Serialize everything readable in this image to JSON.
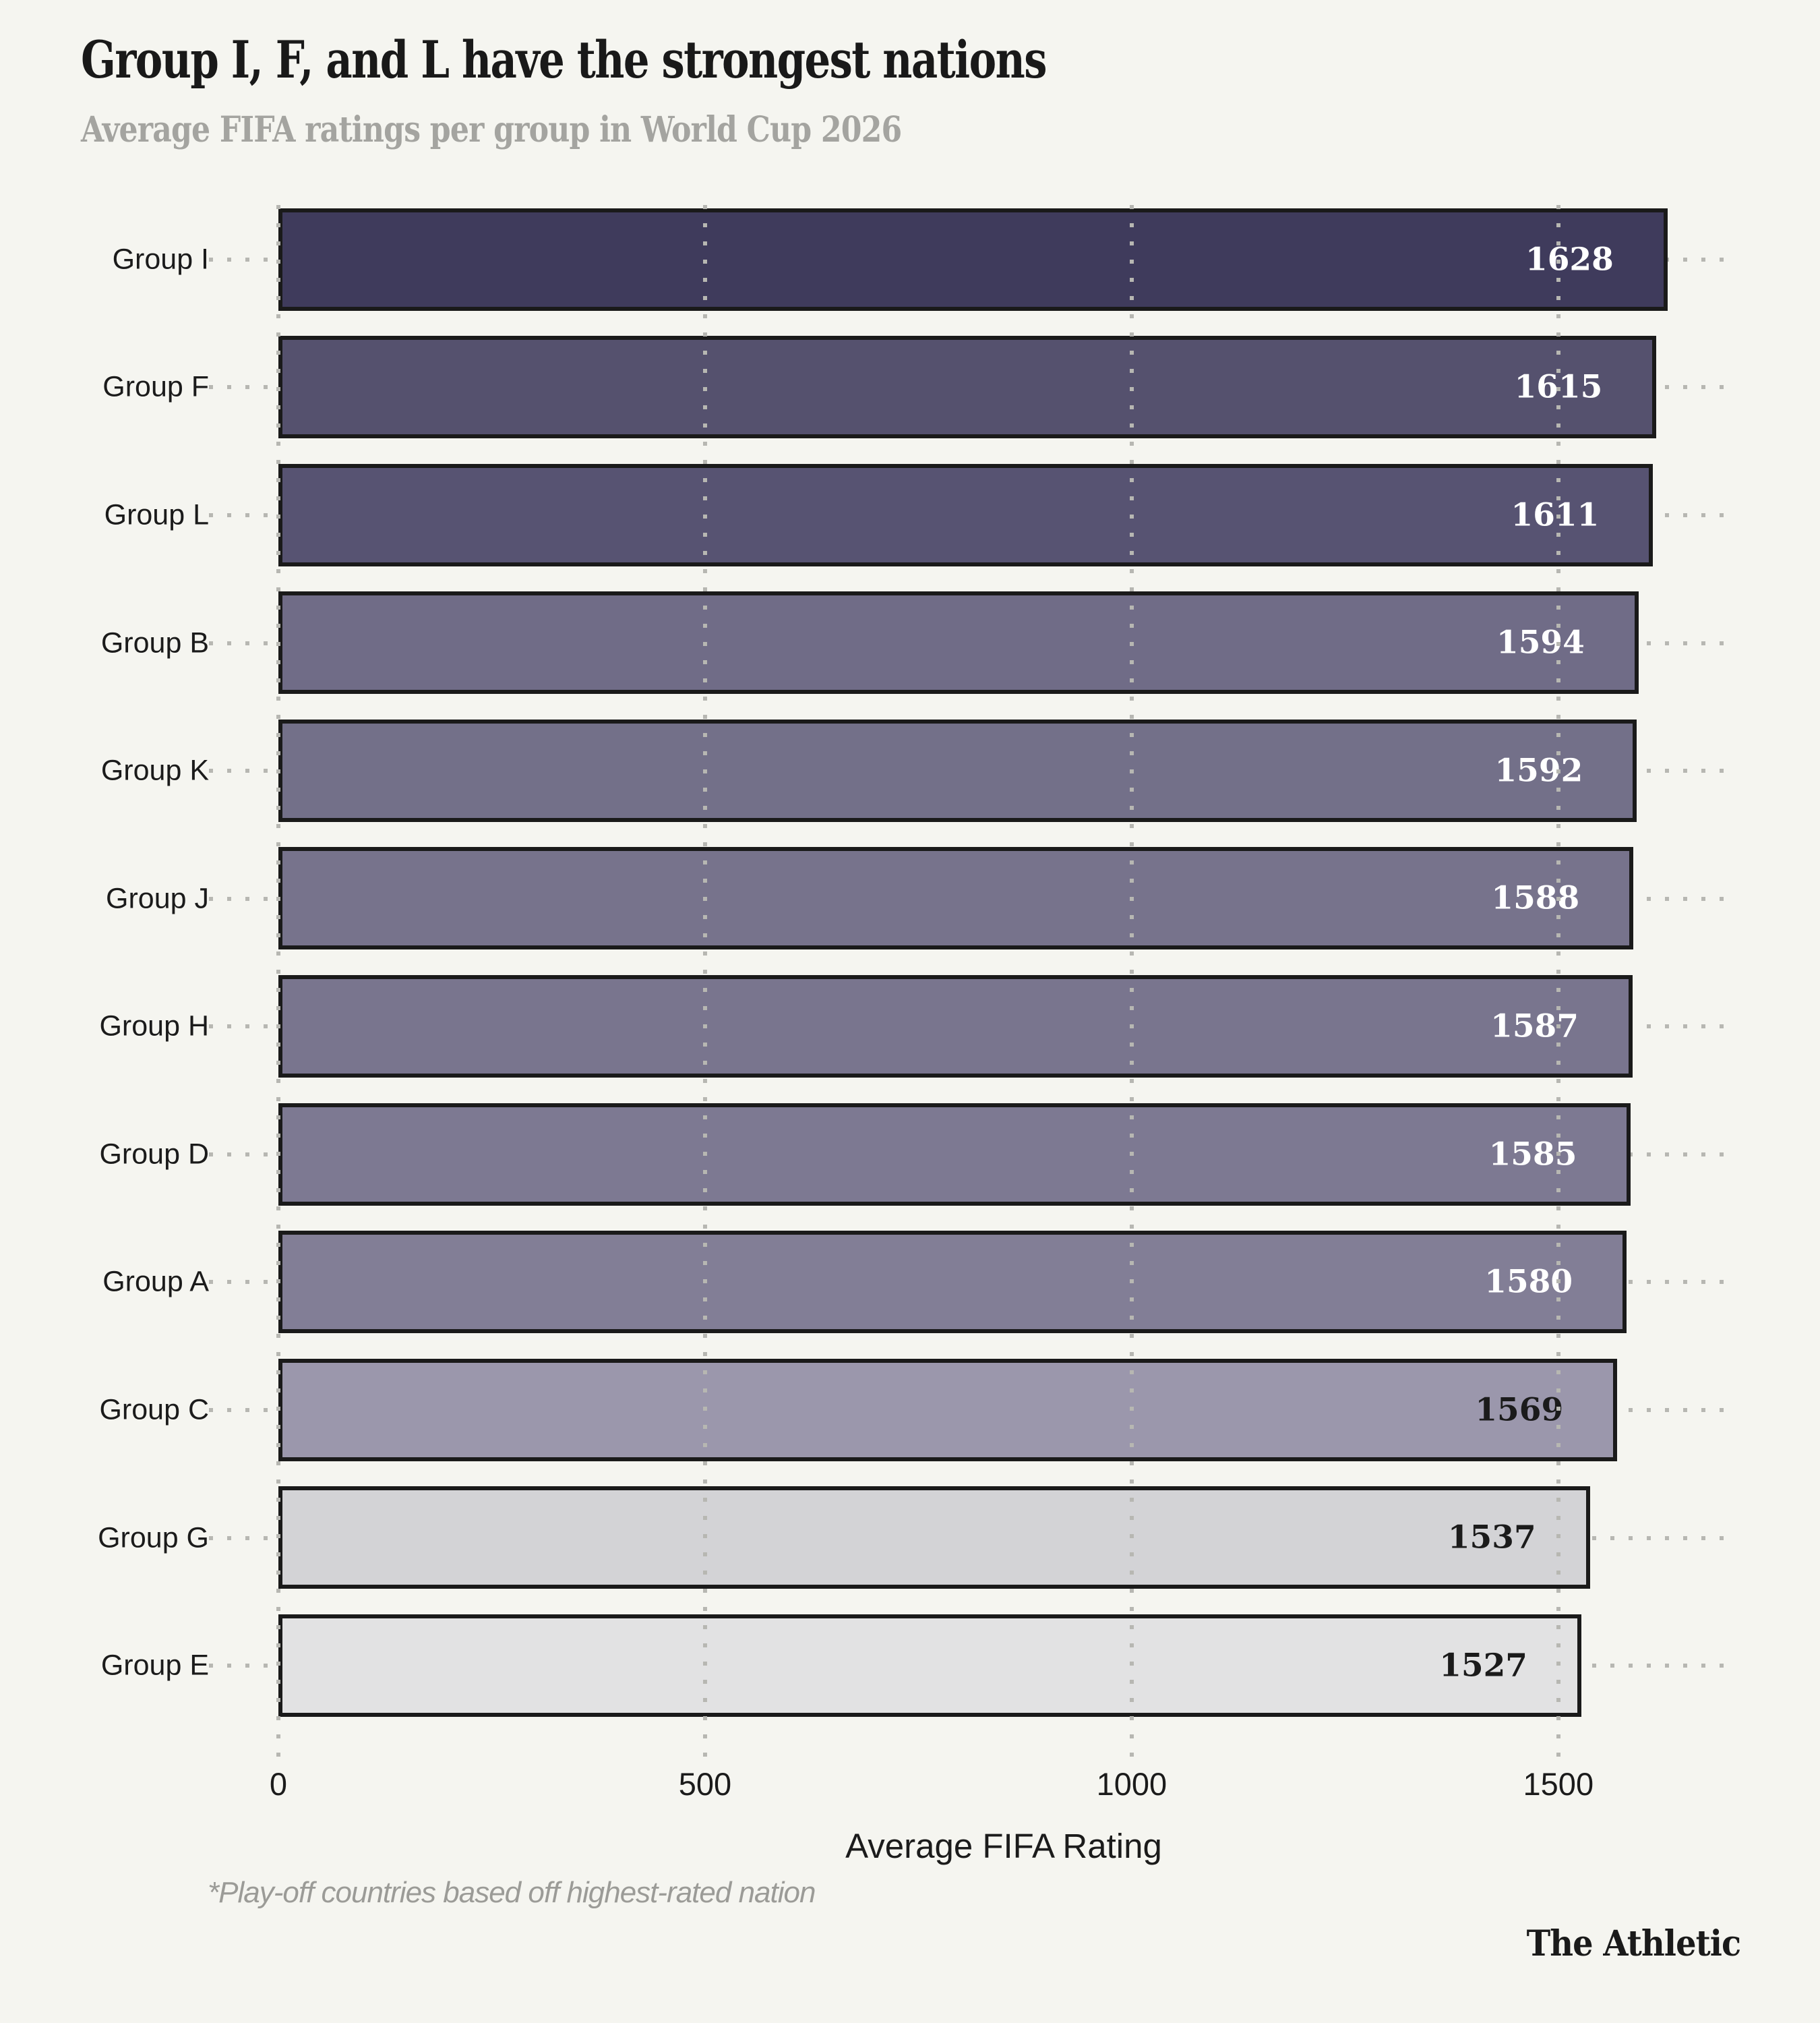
{
  "header": {
    "title": "Group I, F, and L have the strongest nations",
    "subtitle": "Average FIFA ratings per group in World Cup 2026"
  },
  "footer": {
    "footnote": "*Play-off countries based off highest-rated nation",
    "attribution": "The Athletic"
  },
  "colors": {
    "background": "#f5f5f0",
    "bar_border": "#1a1a1a",
    "grid_dots": "#b7b7b2",
    "title_text": "#191919",
    "subtitle_text": "#a4a4a0",
    "footnote_text": "#9b9b97"
  },
  "chart_data": {
    "type": "bar",
    "orientation": "horizontal",
    "title": "Group I, F, and L have the strongest nations",
    "subtitle": "Average FIFA ratings per group in World Cup 2026",
    "categories": [
      "Group I",
      "Group F",
      "Group L",
      "Group B",
      "Group K",
      "Group J",
      "Group H",
      "Group D",
      "Group A",
      "Group C",
      "Group G",
      "Group E"
    ],
    "values": [
      1628,
      1615,
      1611,
      1594,
      1592,
      1588,
      1587,
      1585,
      1580,
      1569,
      1537,
      1527
    ],
    "bar_colors": [
      "#3f3b5c",
      "#55516e",
      "#575372",
      "#706c87",
      "#737089",
      "#77738c",
      "#79758e",
      "#7d7992",
      "#827e96",
      "#9b97ac",
      "#d3d3d6",
      "#e2e2e3"
    ],
    "value_label_colors": [
      "#ffffff",
      "#ffffff",
      "#ffffff",
      "#ffffff",
      "#ffffff",
      "#ffffff",
      "#ffffff",
      "#ffffff",
      "#ffffff",
      "#1b1b1b",
      "#1b1b1b",
      "#1b1b1b"
    ],
    "xlabel": "Average FIFA Rating",
    "x_ticks": [
      0,
      500,
      1000,
      1500
    ],
    "xlim": [
      0,
      1700
    ],
    "grid": "dotted-vertical",
    "legend": "none"
  }
}
